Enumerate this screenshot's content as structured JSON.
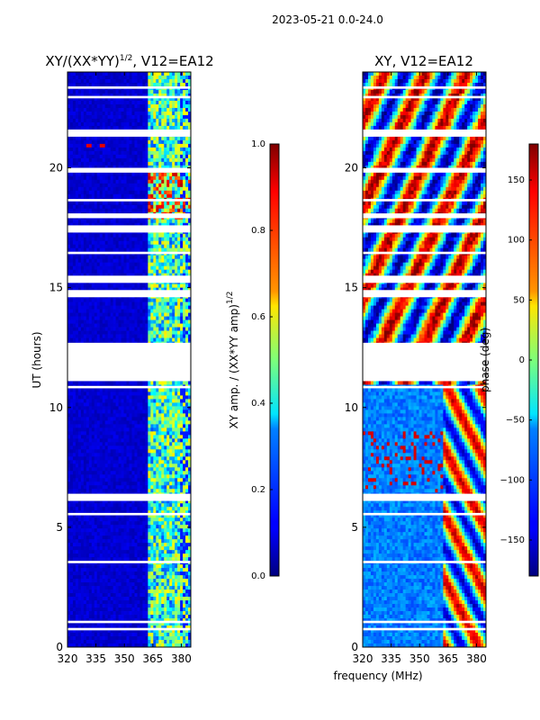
{
  "header": {
    "date_range": "2023-05-21 0.0-24.0"
  },
  "chart_data": [
    {
      "type": "heatmap",
      "title_prefix": "XY/(XX*YY)",
      "title_exp": "1/2",
      "title_suffix": ", V12=EA12",
      "xlabel": "",
      "ylabel": "UT (hours)",
      "xlim": [
        320,
        385
      ],
      "ylim": [
        0,
        24
      ],
      "xticks": [
        320,
        335,
        350,
        365,
        380
      ],
      "yticks": [
        0,
        5,
        10,
        15,
        20
      ],
      "colorbar": {
        "label_main": "XY amp. / (XX*YY amp)",
        "label_exp": "1/2",
        "vmin": 0.0,
        "vmax": 1.0,
        "ticks": [
          "0.0",
          "0.2",
          "0.4",
          "0.6",
          "0.8",
          "1.0"
        ],
        "colormap": "jet"
      }
    },
    {
      "type": "heatmap",
      "title": "XY, V12=EA12",
      "xlabel": "frequency (MHz)",
      "ylabel": "",
      "xlim": [
        320,
        385
      ],
      "ylim": [
        0,
        24
      ],
      "xticks": [
        320,
        335,
        350,
        365,
        380
      ],
      "yticks": [
        0,
        5,
        10,
        15,
        20
      ],
      "colorbar": {
        "label_main": "phase (deg)",
        "vmin": -180,
        "vmax": 180,
        "ticks": [
          "−150",
          "−100",
          "−50",
          "0",
          "50",
          "100",
          "150"
        ],
        "tick_values": [
          -150,
          -100,
          -50,
          0,
          50,
          100,
          150
        ],
        "colormap": "jet"
      }
    }
  ],
  "data_gaps_hours": [
    [
      11.1,
      12.7
    ],
    [
      14.6,
      14.9
    ],
    [
      15.2,
      15.5
    ],
    [
      17.3,
      17.6
    ],
    [
      17.9,
      18.1
    ],
    [
      19.8,
      20.0
    ],
    [
      21.3,
      21.6
    ],
    [
      22.9,
      23.0
    ],
    [
      23.3,
      23.4
    ],
    [
      10.8,
      10.9
    ],
    [
      6.1,
      6.4
    ],
    [
      5.5,
      5.6
    ],
    [
      3.5,
      3.6
    ],
    [
      1.0,
      1.1
    ],
    [
      0.7,
      0.8
    ],
    [
      16.4,
      16.5
    ],
    [
      18.6,
      18.7
    ]
  ]
}
